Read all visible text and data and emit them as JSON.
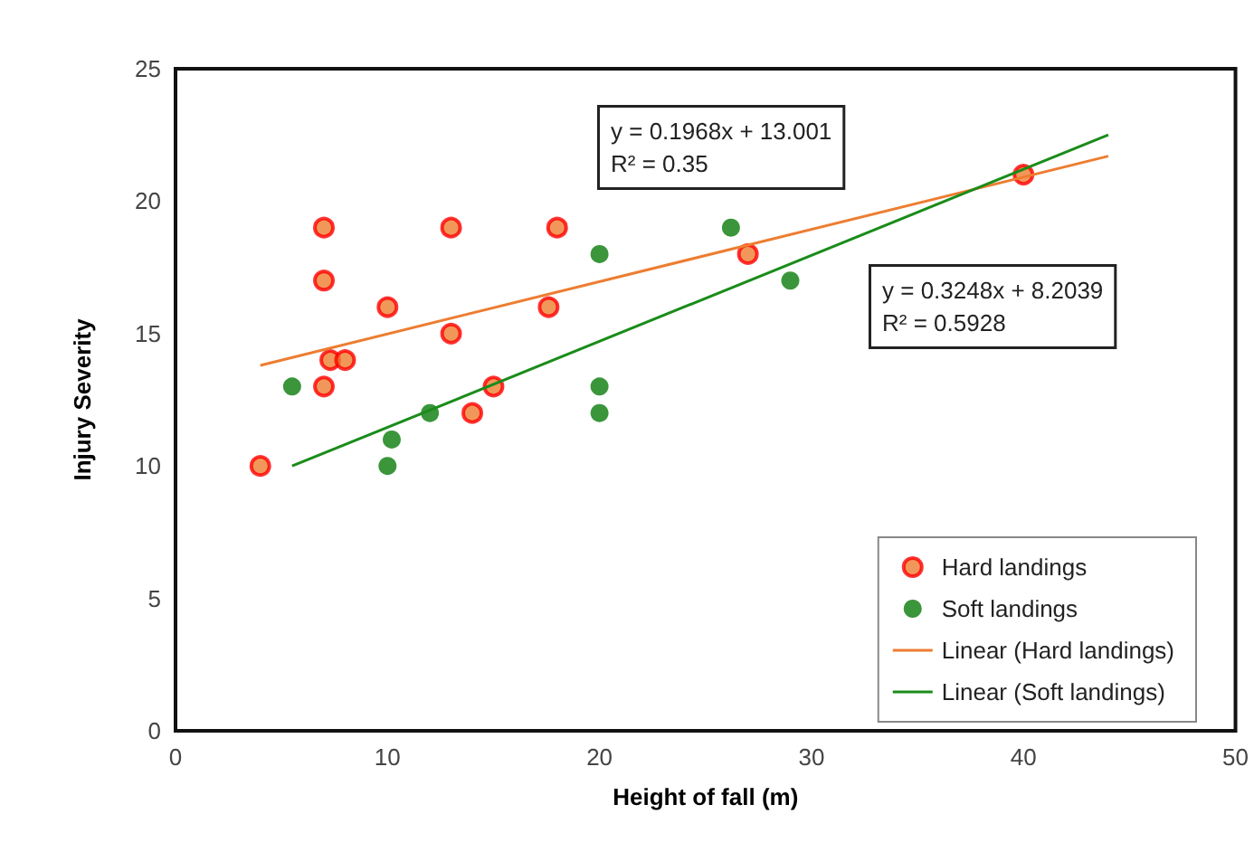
{
  "chart_data": {
    "type": "scatter",
    "xlabel": "Height of fall (m)",
    "ylabel": "Injury Severity",
    "xlim": [
      0,
      50
    ],
    "xticks": [
      0,
      10,
      20,
      30,
      40,
      50
    ],
    "ylim": [
      0,
      25
    ],
    "yticks": [
      0,
      5,
      10,
      15,
      20,
      25
    ],
    "grid": false,
    "legend": "bottom right",
    "marker": "circle",
    "annotations": [
      "y = 0.1968x + 13.001\nR² = 0.35",
      "y = 0.3248x + 8.2039\nR² = 0.5928"
    ],
    "series": [
      {
        "name": "Hard landings",
        "color": "#ed7d31",
        "x": [
          7,
          7,
          10,
          7.3,
          8,
          7,
          4,
          13,
          13,
          15,
          14,
          18,
          17.6,
          27,
          40
        ],
        "values": [
          19,
          17,
          16,
          14,
          14,
          13,
          10,
          19,
          15,
          13,
          12,
          19,
          16,
          18,
          21
        ]
      },
      {
        "name": "Soft landings",
        "color": "#0a7a0a",
        "x": [
          5.5,
          10,
          10.2,
          12,
          20,
          20,
          20,
          26.2,
          29
        ],
        "values": [
          13,
          10,
          11,
          12,
          18,
          13,
          12,
          19,
          17
        ]
      },
      {
        "name": "Linear (Hard landings)",
        "type": "line",
        "color": "#ed7d31",
        "line_style": "solid",
        "marker": "none",
        "x": [
          4,
          44
        ],
        "values": [
          13.8,
          21.7
        ]
      },
      {
        "name": "Linear (Soft landings)",
        "type": "line",
        "color": "#1a8c1a",
        "line_style": "solid",
        "marker": "none",
        "x": [
          5.5,
          44
        ],
        "values": [
          10.0,
          22.5
        ]
      }
    ]
  }
}
